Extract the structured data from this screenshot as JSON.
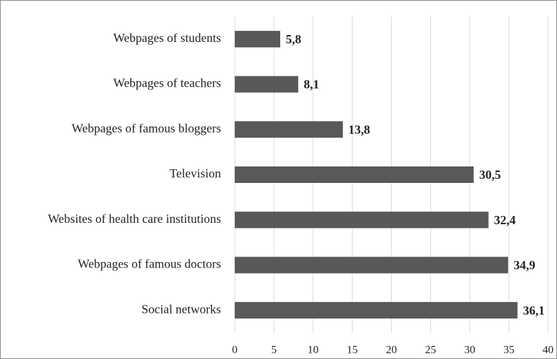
{
  "chart_data": {
    "type": "bar",
    "orientation": "horizontal",
    "categories": [
      "Webpages of students",
      "Webpages of teachers",
      "Webpages of famous bloggers",
      "Television",
      "Websites of health care institutions",
      "Webpages of famous doctors",
      "Social networks"
    ],
    "values": [
      5.8,
      8.1,
      13.8,
      30.5,
      32.4,
      34.9,
      36.1
    ],
    "value_labels": [
      "5,8",
      "8,1",
      "13,8",
      "30,5",
      "32,4",
      "34,9",
      "36,1"
    ],
    "color": "#595959",
    "xlim": [
      0,
      40
    ],
    "xticks": [
      0,
      5,
      10,
      15,
      20,
      25,
      30,
      35,
      40
    ],
    "grid": true
  }
}
